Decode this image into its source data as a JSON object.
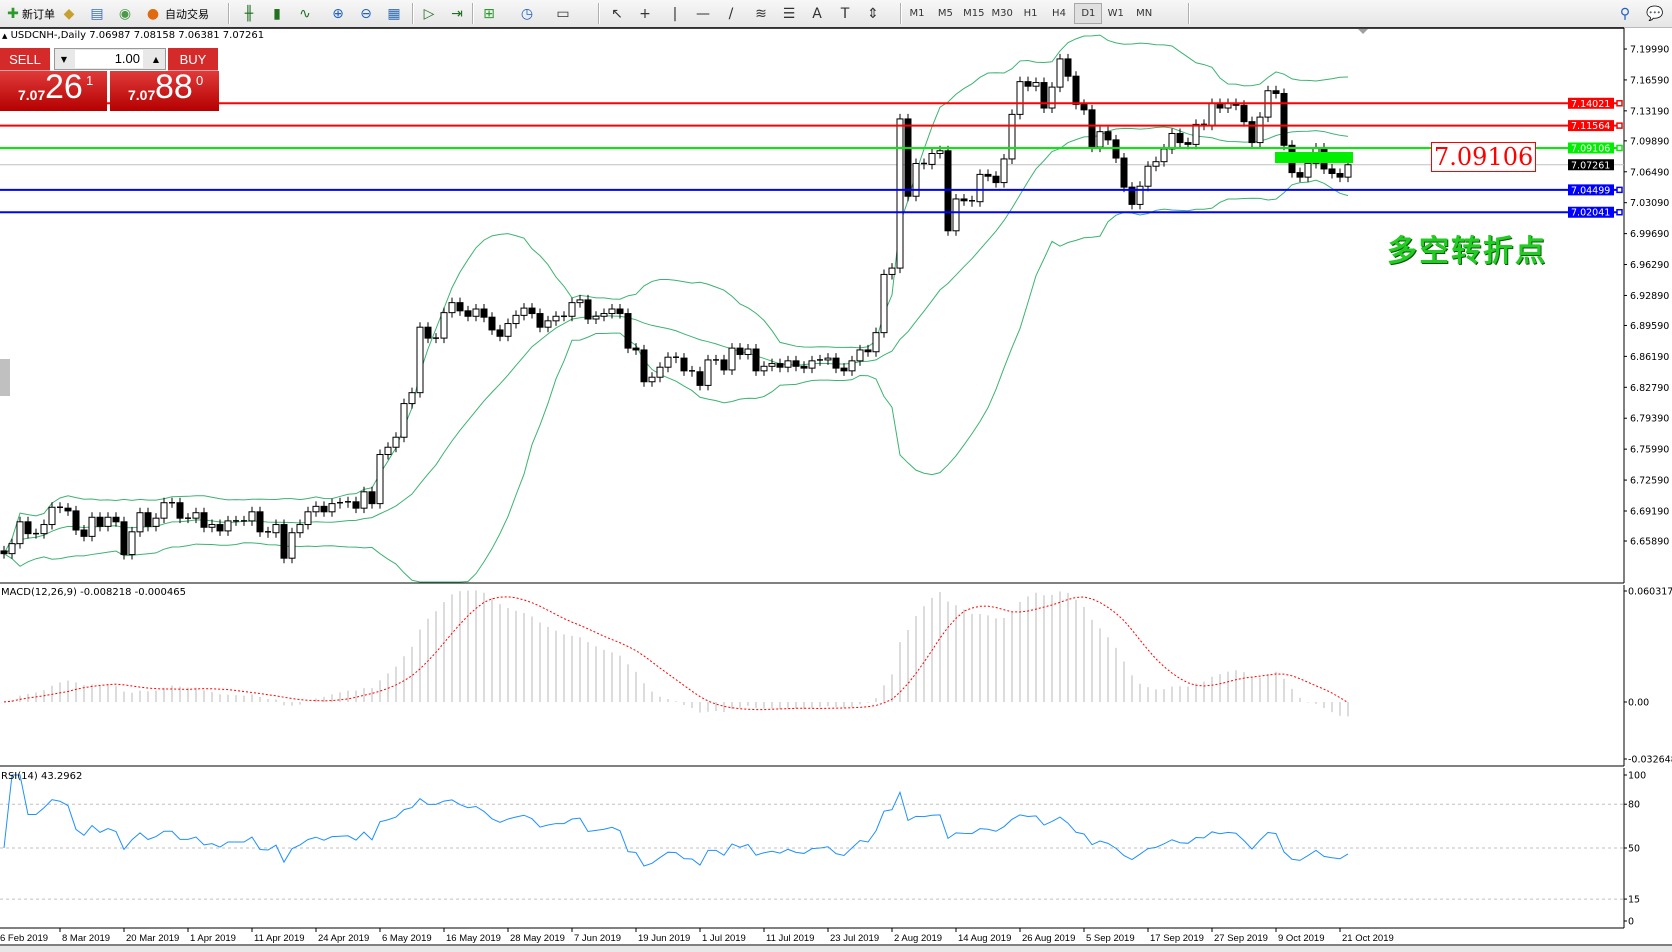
{
  "toolbar": {
    "new_order": "新订单",
    "auto_trading": "自动交易",
    "icons": [
      "new-order-icon",
      "gold-bars-icon",
      "history-center-icon",
      "signal-icon",
      "auto-trading-icon",
      "bar-chart-icon",
      "candlestick-chart-icon",
      "line-chart-icon",
      "zoom-in-icon",
      "zoom-out-icon",
      "tile-windows-icon",
      "auto-scroll-icon",
      "chart-shift-icon",
      "indicators-icon",
      "periods-icon",
      "templates-icon",
      "cursor-icon",
      "crosshair-icon",
      "vertical-line-icon",
      "horizontal-line-icon",
      "trendline-icon",
      "fibonacci-icon",
      "fibo-fan-icon",
      "text-icon",
      "text-label-icon",
      "arrows-icon"
    ],
    "timeframes": [
      "M1",
      "M5",
      "M15",
      "M30",
      "H1",
      "H4",
      "D1",
      "W1",
      "MN"
    ],
    "active_timeframe": "D1",
    "right_icons": [
      "search-icon",
      "chat-icon"
    ]
  },
  "chart": {
    "header": "USDCNH-,Daily  7.06987 7.08158 7.06381 7.07261",
    "symbol_marker": "▲",
    "trade_panel": {
      "sell_label": "SELL",
      "buy_label": "BUY",
      "lot": "1.00",
      "sell_price": {
        "prefix": "7.07",
        "big": "26",
        "sup": "1"
      },
      "buy_price": {
        "prefix": "7.07",
        "big": "88",
        "sup": "0"
      }
    },
    "annotation_price": "7.09106",
    "annotation_text": "多空转折点",
    "macd_label": "MACD(12,26,9) -0.008218 -0.000465",
    "rsi_label": "RSI(14) 43.2962"
  },
  "chart_data": {
    "type": "candlestick",
    "symbol": "USDCNH-",
    "timeframe": "Daily",
    "price_range": [
      6.6589,
      7.1999
    ],
    "price_ticks": [
      "7.19990",
      "7.16590",
      "7.13190",
      "7.09890",
      "7.06490",
      "7.03090",
      "6.99690",
      "6.96290",
      "6.92890",
      "6.89590",
      "6.86190",
      "6.82790",
      "6.79390",
      "6.75990",
      "6.72590",
      "6.69190",
      "6.65890"
    ],
    "first_open": 6.648,
    "closes": [
      6.645,
      6.656,
      6.68,
      6.667,
      6.667,
      6.677,
      6.696,
      6.695,
      6.692,
      6.671,
      6.664,
      6.685,
      6.675,
      6.685,
      6.68,
      6.644,
      6.669,
      6.69,
      6.675,
      6.684,
      6.701,
      6.701,
      6.684,
      6.684,
      6.69,
      6.674,
      6.677,
      6.67,
      6.681,
      6.681,
      6.681,
      6.691,
      6.669,
      6.668,
      6.677,
      6.64,
      6.668,
      6.677,
      6.691,
      6.697,
      6.691,
      6.7,
      6.701,
      6.702,
      6.695,
      6.713,
      6.7,
      6.754,
      6.762,
      6.773,
      6.81,
      6.822,
      6.894,
      6.882,
      6.882,
      6.91,
      6.921,
      6.912,
      6.906,
      6.914,
      6.905,
      6.891,
      6.884,
      6.898,
      6.907,
      6.915,
      6.909,
      6.894,
      6.901,
      6.906,
      6.906,
      6.921,
      6.924,
      6.903,
      6.906,
      6.909,
      6.914,
      6.909,
      6.871,
      6.869,
      6.834,
      6.839,
      6.85,
      6.861,
      6.86,
      6.846,
      6.845,
      6.83,
      6.858,
      6.858,
      6.847,
      6.871,
      6.864,
      6.87,
      6.846,
      6.851,
      6.854,
      6.85,
      6.857,
      6.851,
      6.849,
      6.857,
      6.858,
      6.86,
      6.849,
      6.846,
      6.857,
      6.869,
      6.867,
      6.888,
      6.952,
      6.959,
      7.123,
      7.038,
      7.074,
      7.073,
      7.085,
      7.088,
      7.0,
      7.035,
      7.033,
      7.032,
      7.062,
      7.06,
      7.053,
      7.079,
      7.128,
      7.164,
      7.159,
      7.163,
      7.135,
      7.158,
      7.189,
      7.17,
      7.139,
      7.133,
      7.092,
      7.109,
      7.1,
      7.08,
      7.048,
      7.029,
      7.049,
      7.071,
      7.076,
      7.09,
      7.107,
      7.097,
      7.095,
      7.117,
      7.116,
      7.14,
      7.135,
      7.14,
      7.138,
      7.12,
      7.097,
      7.125,
      7.154,
      7.151,
      7.094,
      7.064,
      7.059,
      7.074,
      7.091,
      7.068,
      7.063,
      7.059,
      7.0726
    ],
    "indicators": {
      "bollinger": {
        "period": 20,
        "deviation": 2,
        "color": "#3cb371"
      },
      "macd": {
        "fast": 12,
        "slow": 26,
        "signal": 9,
        "value": -0.008218,
        "signal_value": -0.000465,
        "range": [
          -0.032648,
          0.060317
        ],
        "ticks": [
          "0.060317",
          "0.00",
          "-0.032648"
        ]
      },
      "rsi": {
        "period": 14,
        "value": 43.2962,
        "levels": [
          80,
          50,
          15
        ],
        "ticks": [
          "100",
          "80",
          "50",
          "15",
          "0"
        ],
        "color": "#1e90ff"
      }
    },
    "horizontal_lines": [
      {
        "price": 7.14021,
        "label": "7.14021",
        "color": "#ff0000"
      },
      {
        "price": 7.11564,
        "label": "7.11564",
        "color": "#ff0000"
      },
      {
        "price": 7.09106,
        "label": "7.09106",
        "color": "#00ee00"
      },
      {
        "price": 7.04499,
        "label": "7.04499",
        "color": "#0000ff"
      },
      {
        "price": 7.02041,
        "label": "7.02041",
        "color": "#0000ff"
      }
    ],
    "current_price": {
      "price": 7.07261,
      "label": "7.07261"
    },
    "time_labels": [
      {
        "bar": -1,
        "label": "6 Feb 2019"
      },
      {
        "bar": 7,
        "label": "8 Mar 2019"
      },
      {
        "bar": 15,
        "label": "20 Mar 2019"
      },
      {
        "bar": 23,
        "label": "1 Apr 2019"
      },
      {
        "bar": 31,
        "label": "11 Apr 2019"
      },
      {
        "bar": 39,
        "label": "24 Apr 2019"
      },
      {
        "bar": 47,
        "label": "6 May 2019"
      },
      {
        "bar": 55,
        "label": "16 May 2019"
      },
      {
        "bar": 63,
        "label": "28 May 2019"
      },
      {
        "bar": 71,
        "label": "7 Jun 2019"
      },
      {
        "bar": 79,
        "label": "19 Jun 2019"
      },
      {
        "bar": 87,
        "label": "1 Jul 2019"
      },
      {
        "bar": 95,
        "label": "11 Jul 2019"
      },
      {
        "bar": 103,
        "label": "23 Jul 2019"
      },
      {
        "bar": 111,
        "label": "2 Aug 2019"
      },
      {
        "bar": 119,
        "label": "14 Aug 2019"
      },
      {
        "bar": 127,
        "label": "26 Aug 2019"
      },
      {
        "bar": 135,
        "label": "5 Sep 2019"
      },
      {
        "bar": 143,
        "label": "17 Sep 2019"
      },
      {
        "bar": 151,
        "label": "27 Sep 2019"
      },
      {
        "bar": 159,
        "label": "9 Oct 2019"
      },
      {
        "bar": 167,
        "label": "21 Oct 2019"
      }
    ]
  }
}
